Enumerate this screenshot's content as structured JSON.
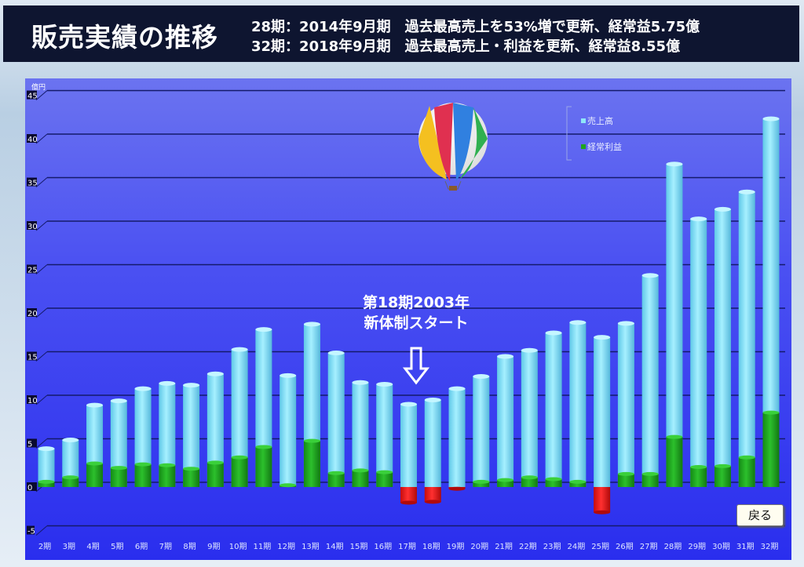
{
  "header": {
    "title": "販売実績の推移",
    "note1": "28期：2014年9月期　過去最高売上を53%増で更新、経常益5.75億",
    "note2": "32期：2018年9月期　過去最高売上・利益を更新、経常益8.55億"
  },
  "annotation": {
    "line1": "第18期2003年",
    "line2": "新体制スタート"
  },
  "back_label": "戻る",
  "colors": {
    "sales": "#8fe6f8",
    "profit": "#1ea51e",
    "loss": "#e81818"
  },
  "chart_data": {
    "type": "bar",
    "ylabel": "億円",
    "ylim": [
      -5,
      45
    ],
    "yticks": [
      -5,
      0,
      5,
      10,
      15,
      20,
      25,
      30,
      35,
      40,
      45
    ],
    "grid": true,
    "legend_position": "top-right",
    "categories": [
      "2期",
      "3期",
      "4期",
      "5期",
      "6期",
      "7期",
      "8期",
      "9期",
      "10期",
      "11期",
      "12期",
      "13期",
      "14期",
      "15期",
      "16期",
      "17期",
      "18期",
      "19期",
      "20期",
      "21期",
      "22期",
      "23期",
      "24期",
      "25期",
      "26期",
      "27期",
      "28期",
      "29期",
      "30期",
      "31期",
      "32期"
    ],
    "series": [
      {
        "name": "売上高",
        "values": [
          4.4,
          5.4,
          9.4,
          9.9,
          11.3,
          11.9,
          11.7,
          13.0,
          15.8,
          18.1,
          12.8,
          18.7,
          15.4,
          12.0,
          11.8,
          9.5,
          10.0,
          11.3,
          12.7,
          15.0,
          15.7,
          17.7,
          18.9,
          17.2,
          18.8,
          24.3,
          37.1,
          30.8,
          31.9,
          33.9,
          42.3
        ]
      },
      {
        "name": "経常利益",
        "values": [
          0.6,
          1.1,
          2.7,
          2.2,
          2.6,
          2.5,
          2.1,
          2.8,
          3.4,
          4.6,
          0.2,
          5.3,
          1.6,
          1.9,
          1.7,
          -1.8,
          -1.7,
          -0.2,
          0.6,
          0.8,
          1.1,
          0.9,
          0.6,
          -2.9,
          1.5,
          1.5,
          5.75,
          2.3,
          2.4,
          3.4,
          8.55
        ]
      }
    ]
  }
}
